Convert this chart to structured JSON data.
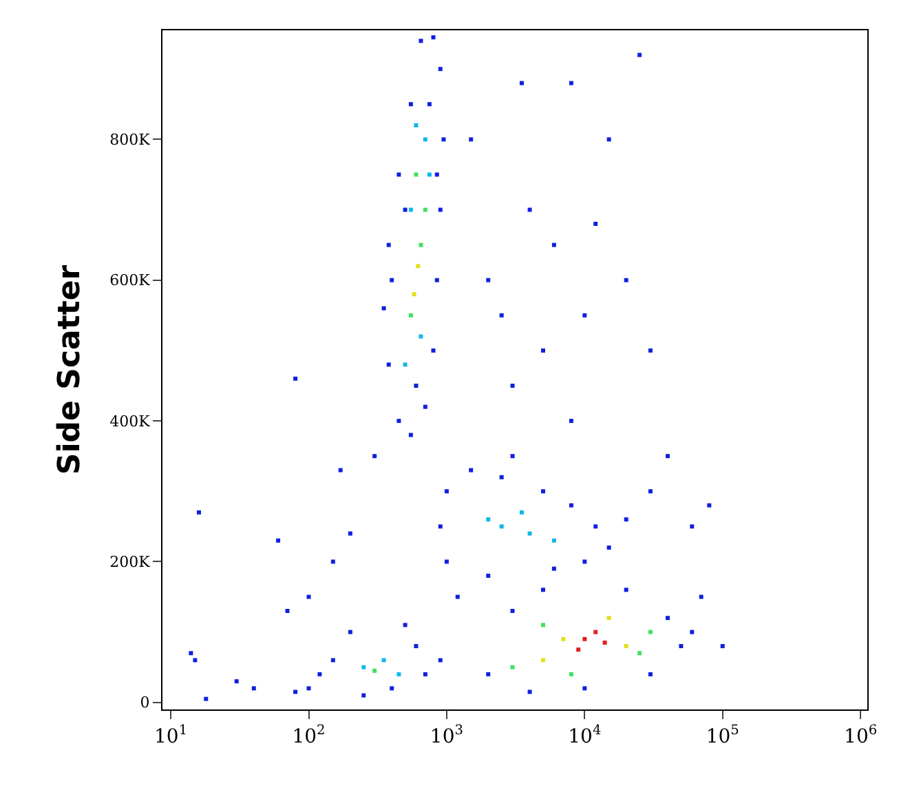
{
  "chart_data": {
    "type": "scatter",
    "ylabel": "Side Scatter",
    "log": "x",
    "marker": "square",
    "xlim": [
      8.7,
      1120000
    ],
    "xticks": [
      {
        "value": 10,
        "label": "10$^{1}$"
      },
      {
        "value": 100,
        "label": "10$^{2}$"
      },
      {
        "value": 1000,
        "label": "10$^{3}$"
      },
      {
        "value": 10000,
        "label": "10$^{4}$"
      },
      {
        "value": 100000,
        "label": "10$^{5}$"
      },
      {
        "value": 1000000,
        "label": "10$^{6}$"
      }
    ],
    "ylim": [
      -10000,
      955000
    ],
    "yticks": [
      0,
      {
        "value": 200000,
        "label": "200K"
      },
      {
        "value": 400000,
        "label": "400K"
      },
      {
        "value": 600000,
        "label": "600K"
      },
      {
        "value": 800000,
        "label": "800K"
      }
    ],
    "series": [
      {
        "x": [
          450,
          550,
          700,
          380,
          800,
          350,
          850,
          380,
          900,
          450,
          950,
          550,
          900,
          650,
          800,
          500,
          400,
          850,
          600,
          750,
          500,
          650,
          550,
          750,
          700,
          600,
          550,
          650,
          600,
          700,
          580,
          620,
          1000,
          1500,
          2500,
          5000,
          8000,
          12000,
          15000,
          1000,
          1200,
          2000,
          6000,
          900,
          3000,
          10000,
          20000,
          2500,
          4000,
          3500,
          6000,
          2000,
          2000,
          3000,
          5000,
          20000,
          40000,
          50000,
          60000,
          30000,
          10000,
          4000,
          70000,
          3000,
          5000,
          30000,
          25000,
          8000,
          5000,
          15000,
          7000,
          20000,
          10000,
          12000,
          9000,
          14000,
          100,
          150,
          200,
          250,
          400,
          600,
          500,
          120,
          80,
          700,
          900,
          250,
          350,
          450,
          300,
          30,
          40,
          18,
          14,
          15,
          16,
          60,
          70,
          100,
          170,
          200,
          300,
          80,
          150,
          2000,
          4000,
          6000,
          10000,
          3000,
          8000,
          20000,
          30000,
          15000,
          8000,
          3500,
          25000,
          40000,
          60000,
          80000,
          100000,
          1500,
          5000,
          12000,
          2500,
          30000
        ],
        "values": [
          400000,
          380000,
          420000,
          480000,
          500000,
          560000,
          600000,
          650000,
          700000,
          750000,
          800000,
          850000,
          900000,
          940000,
          945000,
          700000,
          600000,
          750000,
          450000,
          850000,
          480000,
          520000,
          700000,
          750000,
          800000,
          820000,
          550000,
          650000,
          750000,
          700000,
          580000,
          620000,
          300000,
          330000,
          320000,
          300000,
          280000,
          250000,
          220000,
          200000,
          150000,
          180000,
          190000,
          250000,
          350000,
          200000,
          260000,
          250000,
          240000,
          270000,
          230000,
          260000,
          40000,
          130000,
          160000,
          160000,
          120000,
          80000,
          100000,
          40000,
          20000,
          15000,
          150000,
          50000,
          110000,
          100000,
          70000,
          40000,
          60000,
          120000,
          90000,
          80000,
          90000,
          100000,
          75000,
          85000,
          20000,
          60000,
          100000,
          10000,
          20000,
          80000,
          110000,
          40000,
          15000,
          40000,
          60000,
          50000,
          60000,
          40000,
          45000,
          30000,
          20000,
          5000,
          70000,
          60000,
          270000,
          230000,
          130000,
          150000,
          330000,
          240000,
          350000,
          460000,
          200000,
          600000,
          700000,
          650000,
          550000,
          450000,
          400000,
          600000,
          500000,
          800000,
          880000,
          880000,
          920000,
          350000,
          250000,
          280000,
          80000,
          800000,
          500000,
          680000,
          550000,
          300000
        ],
        "colors": [
          "#1020e0",
          "#1020e0",
          "#1020e0",
          "#1020e0",
          "#1020e0",
          "#1020e0",
          "#1020e0",
          "#1020e0",
          "#1020e0",
          "#1020e0",
          "#1020e0",
          "#1020e0",
          "#1020e0",
          "#1020e0",
          "#1020e0",
          "#1020e0",
          "#1020e0",
          "#1020e0",
          "#1020e0",
          "#1020e0",
          "#10b8e8",
          "#10b8e8",
          "#10b8e8",
          "#10b8e8",
          "#10b8e8",
          "#10b8e8",
          "#40e060",
          "#40e060",
          "#40e060",
          "#40e060",
          "#e0e020",
          "#e0e020",
          "#1020e0",
          "#1020e0",
          "#1020e0",
          "#1020e0",
          "#1020e0",
          "#1020e0",
          "#1020e0",
          "#1020e0",
          "#1020e0",
          "#1020e0",
          "#1020e0",
          "#1020e0",
          "#1020e0",
          "#1020e0",
          "#1020e0",
          "#10b8e8",
          "#10b8e8",
          "#10b8e8",
          "#10b8e8",
          "#10b8e8",
          "#1020e0",
          "#1020e0",
          "#1020e0",
          "#1020e0",
          "#1020e0",
          "#1020e0",
          "#1020e0",
          "#1020e0",
          "#1020e0",
          "#1020e0",
          "#1020e0",
          "#40e060",
          "#40e060",
          "#40e060",
          "#40e060",
          "#40e060",
          "#e0e020",
          "#e0e020",
          "#e0e020",
          "#e0e020",
          "#e02020",
          "#e02020",
          "#e02020",
          "#e02020",
          "#1020e0",
          "#1020e0",
          "#1020e0",
          "#1020e0",
          "#1020e0",
          "#1020e0",
          "#1020e0",
          "#1020e0",
          "#1020e0",
          "#1020e0",
          "#1020e0",
          "#10b8e8",
          "#10b8e8",
          "#10b8e8",
          "#40e060",
          "#1020e0",
          "#1020e0",
          "#1020e0",
          "#1020e0",
          "#1020e0",
          "#1020e0",
          "#1020e0",
          "#1020e0",
          "#1020e0",
          "#1020e0",
          "#1020e0",
          "#1020e0",
          "#1020e0",
          "#1020e0",
          "#1020e0",
          "#1020e0",
          "#1020e0",
          "#1020e0",
          "#1020e0",
          "#1020e0",
          "#1020e0",
          "#1020e0",
          "#1020e0",
          "#1020e0",
          "#1020e0",
          "#1020e0",
          "#1020e0",
          "#1020e0",
          "#1020e0",
          "#1020e0",
          "#1020e0",
          "#1020e0",
          "#1020e0",
          "#1020e0",
          "#1020e0"
        ]
      }
    ]
  }
}
